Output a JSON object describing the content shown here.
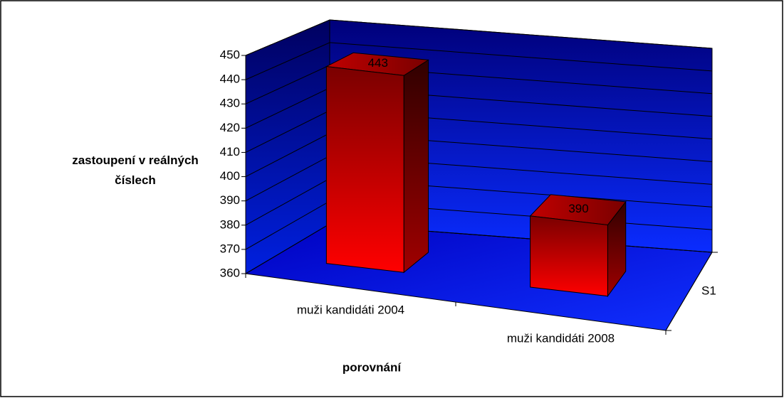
{
  "chart_data": {
    "type": "bar",
    "categories": [
      "muži kandidáti 2004",
      "muži kandidáti 2008"
    ],
    "series": [
      {
        "name": "S1",
        "color": "#ff0000",
        "values": [
          443,
          390
        ]
      }
    ],
    "y_label": "zastoupení v reálných číslech",
    "x_label": "porovnání",
    "ylim": [
      360,
      450
    ],
    "yticks": [
      360,
      370,
      380,
      390,
      400,
      410,
      420,
      430,
      440,
      450
    ],
    "grid": true
  }
}
